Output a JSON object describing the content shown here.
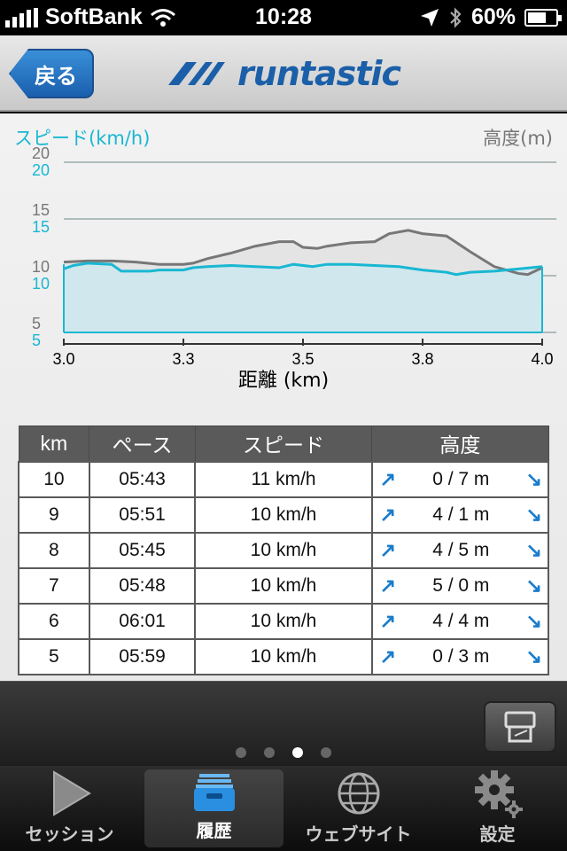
{
  "status": {
    "carrier": "SoftBank",
    "time": "10:28",
    "battery": "60%",
    "battery_level": 0.6
  },
  "nav": {
    "back_label": "戻る",
    "brand": "runtastic"
  },
  "chart_data": {
    "type": "line",
    "left_title": "スピード(km/h)",
    "right_title": "高度(m)",
    "xlabel": "距離 (km)",
    "x_ticks": [
      "3.0",
      "3.3",
      "3.5",
      "3.8",
      "4.0"
    ],
    "y_ticks_altitude": [
      "20",
      "15",
      "10",
      "5"
    ],
    "y_ticks_speed": [
      "20",
      "15",
      "10",
      "5"
    ],
    "xlim": [
      3.0,
      4.0
    ],
    "ylim": [
      5,
      20
    ],
    "series": [
      {
        "name": "高度(m)",
        "color": "#777777",
        "points": [
          [
            3.0,
            11.2
          ],
          [
            3.05,
            11.3
          ],
          [
            3.1,
            11.3
          ],
          [
            3.15,
            11.2
          ],
          [
            3.2,
            11.0
          ],
          [
            3.25,
            11.0
          ],
          [
            3.27,
            11.1
          ],
          [
            3.3,
            11.5
          ],
          [
            3.35,
            12.0
          ],
          [
            3.4,
            12.6
          ],
          [
            3.45,
            13.0
          ],
          [
            3.48,
            13.0
          ],
          [
            3.5,
            12.5
          ],
          [
            3.53,
            12.4
          ],
          [
            3.55,
            12.6
          ],
          [
            3.6,
            12.9
          ],
          [
            3.65,
            13.0
          ],
          [
            3.68,
            13.7
          ],
          [
            3.72,
            14.0
          ],
          [
            3.75,
            13.7
          ],
          [
            3.8,
            13.5
          ],
          [
            3.85,
            12.1
          ],
          [
            3.9,
            10.8
          ],
          [
            3.95,
            10.2
          ],
          [
            3.97,
            10.1
          ],
          [
            4.0,
            10.7
          ]
        ]
      },
      {
        "name": "スピード(km/h)",
        "color": "#19b7d2",
        "points": [
          [
            3.0,
            10.6
          ],
          [
            3.02,
            10.9
          ],
          [
            3.05,
            11.1
          ],
          [
            3.1,
            11.0
          ],
          [
            3.12,
            10.4
          ],
          [
            3.18,
            10.4
          ],
          [
            3.2,
            10.5
          ],
          [
            3.25,
            10.5
          ],
          [
            3.27,
            10.7
          ],
          [
            3.3,
            10.8
          ],
          [
            3.35,
            10.9
          ],
          [
            3.4,
            10.8
          ],
          [
            3.45,
            10.7
          ],
          [
            3.48,
            11.0
          ],
          [
            3.52,
            10.8
          ],
          [
            3.55,
            11.0
          ],
          [
            3.6,
            11.0
          ],
          [
            3.65,
            10.9
          ],
          [
            3.7,
            10.8
          ],
          [
            3.75,
            10.5
          ],
          [
            3.8,
            10.3
          ],
          [
            3.82,
            10.1
          ],
          [
            3.85,
            10.3
          ],
          [
            3.9,
            10.4
          ],
          [
            3.95,
            10.6
          ],
          [
            4.0,
            10.8
          ]
        ]
      }
    ]
  },
  "table": {
    "headers": [
      "km",
      "ペース",
      "スピード",
      "高度"
    ],
    "rows": [
      {
        "km": "10",
        "pace": "05:43",
        "speed": "11 km/h",
        "alt": "0 / 7 m"
      },
      {
        "km": "9",
        "pace": "05:51",
        "speed": "10 km/h",
        "alt": "4 / 1 m"
      },
      {
        "km": "8",
        "pace": "05:45",
        "speed": "10 km/h",
        "alt": "4 / 5 m"
      },
      {
        "km": "7",
        "pace": "05:48",
        "speed": "10 km/h",
        "alt": "5 / 0 m"
      },
      {
        "km": "6",
        "pace": "06:01",
        "speed": "10 km/h",
        "alt": "4 / 4 m"
      },
      {
        "km": "5",
        "pace": "05:59",
        "speed": "10 km/h",
        "alt": "0 / 3 m"
      }
    ]
  },
  "pager": {
    "count": 4,
    "active": 2
  },
  "tabs": [
    {
      "label": "セッション",
      "icon": "play-icon",
      "active": false
    },
    {
      "label": "履歴",
      "icon": "inbox-tray-icon",
      "active": true
    },
    {
      "label": "ウェブサイト",
      "icon": "globe-icon",
      "active": false
    },
    {
      "label": "設定",
      "icon": "gear-icon",
      "active": false
    }
  ]
}
